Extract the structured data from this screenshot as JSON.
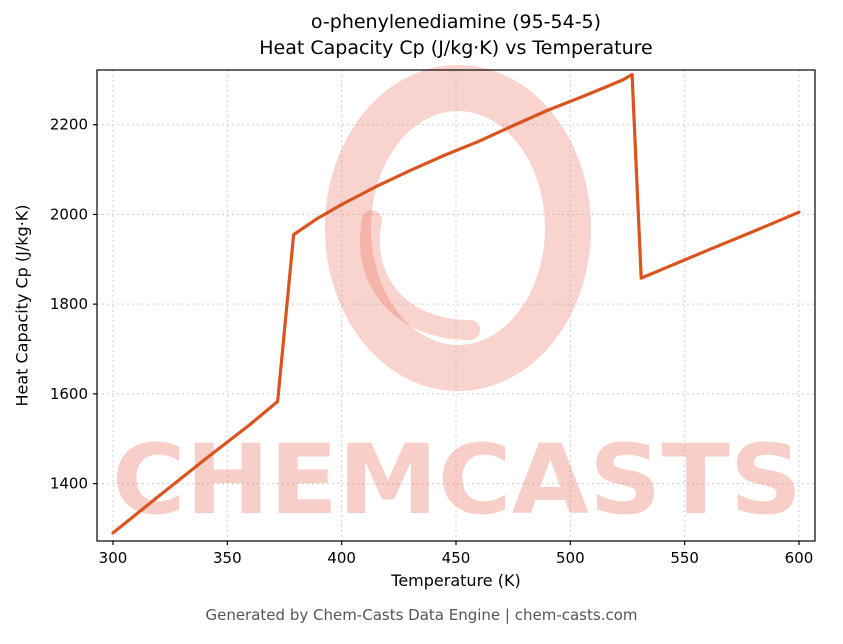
{
  "title": {
    "line1": "o-phenylenediamine (95-54-5)",
    "line2": "Heat Capacity Cp (J/kg·K) vs Temperature"
  },
  "footer": "Generated by Chem-Casts Data Engine | chem-casts.com",
  "watermark": {
    "text": "CHEMCASTS",
    "color": "#e8604a"
  },
  "chart_data": {
    "type": "line",
    "title": "o-phenylenediamine (95-54-5)\nHeat Capacity Cp (J/kg·K) vs Temperature",
    "xlabel": "Temperature (K)",
    "ylabel": "Heat Capacity Cp (J/kg·K)",
    "xlim": [
      293,
      607
    ],
    "ylim": [
      1272,
      2322
    ],
    "xticks": [
      300,
      350,
      400,
      450,
      500,
      550,
      600
    ],
    "yticks": [
      1400,
      1600,
      1800,
      2000,
      2200
    ],
    "grid": true,
    "legend": "none",
    "line_color": "#d9541e",
    "line_width": 3.2,
    "series": [
      {
        "name": "Heat Capacity Cp",
        "points": [
          [
            300,
            1290
          ],
          [
            320,
            1372
          ],
          [
            340,
            1453
          ],
          [
            360,
            1532
          ],
          [
            372,
            1583
          ],
          [
            379,
            1955
          ],
          [
            390,
            1993
          ],
          [
            400,
            2022
          ],
          [
            415,
            2062
          ],
          [
            430,
            2098
          ],
          [
            445,
            2132
          ],
          [
            460,
            2163
          ],
          [
            475,
            2198
          ],
          [
            490,
            2232
          ],
          [
            505,
            2262
          ],
          [
            515,
            2283
          ],
          [
            523,
            2300
          ],
          [
            527,
            2312
          ],
          [
            531,
            1858
          ],
          [
            545,
            1888
          ],
          [
            560,
            1920
          ],
          [
            580,
            1962
          ],
          [
            600,
            2005
          ]
        ]
      }
    ]
  }
}
